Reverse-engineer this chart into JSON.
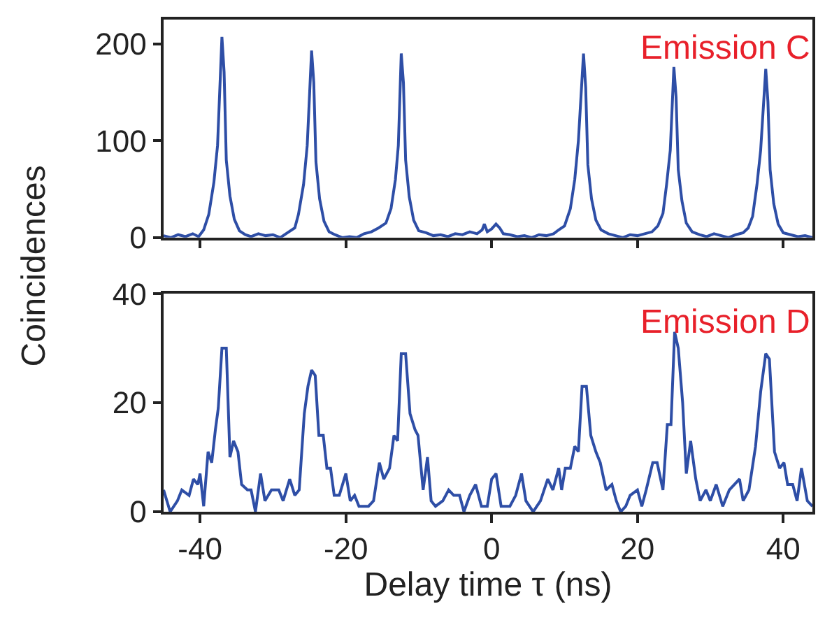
{
  "chart_data": [
    {
      "type": "line",
      "ylabel": "Coincidences",
      "annotations": [
        "Emission C"
      ],
      "xlim": [
        -45,
        44
      ],
      "xticks": [
        -40,
        -20,
        0,
        20,
        40
      ],
      "ylim": [
        0,
        225
      ],
      "yticks": [
        0,
        100,
        200
      ],
      "tick_labels": "y",
      "series": [
        {
          "color": "#2e4ea6",
          "x": [
            -45,
            -44,
            -43,
            -42,
            -41,
            -40.2,
            -39.5,
            -38.8,
            -38.1,
            -37.6,
            -37.0,
            -36.7,
            -36.4,
            -35.9,
            -35.3,
            -34.6,
            -33.8,
            -33,
            -32,
            -31,
            -30,
            -29,
            -28,
            -27,
            -26.5,
            -25.8,
            -25.3,
            -24.7,
            -24.4,
            -24.1,
            -23.6,
            -23,
            -22.3,
            -21.5,
            -20.5,
            -19.5,
            -18.5,
            -17.5,
            -16.5,
            -15.5,
            -14.5,
            -13.8,
            -13.2,
            -12.8,
            -12.4,
            -12.1,
            -11.8,
            -11.3,
            -10.7,
            -10,
            -9,
            -8,
            -7,
            -6,
            -5,
            -4,
            -3,
            -2,
            -1.3,
            -1.0,
            -0.6,
            0,
            0.6,
            1.1,
            1.6,
            2.5,
            3.5,
            4.5,
            5.5,
            6.5,
            7.5,
            8.5,
            9.2,
            10,
            10.8,
            11.4,
            11.9,
            12.6,
            12.9,
            13.2,
            13.7,
            14.3,
            15,
            16,
            17,
            18,
            19,
            20,
            21,
            22,
            22.8,
            23.5,
            24,
            24.5,
            25,
            25.3,
            25.6,
            26.1,
            26.7,
            27.5,
            28.5,
            29.5,
            30.5,
            31.5,
            32.5,
            33.5,
            34.5,
            35.2,
            35.8,
            36.4,
            36.9,
            37.6,
            37.9,
            38.2,
            38.7,
            39.3,
            40,
            41,
            42,
            43,
            44
          ],
          "values": [
            2,
            0,
            3,
            1,
            4,
            1,
            8,
            24,
            57,
            95,
            207,
            171,
            80,
            43,
            19,
            7,
            3,
            1,
            4,
            2,
            3,
            0,
            5,
            10,
            24,
            55,
            95,
            193,
            160,
            78,
            40,
            17,
            6,
            3,
            0,
            1,
            0,
            4,
            6,
            10,
            15,
            30,
            60,
            95,
            190,
            160,
            80,
            42,
            18,
            7,
            5,
            2,
            3,
            1,
            4,
            3,
            6,
            4,
            8,
            14,
            6,
            9,
            14,
            10,
            4,
            3,
            1,
            2,
            0,
            3,
            2,
            4,
            8,
            12,
            30,
            60,
            100,
            190,
            155,
            75,
            40,
            18,
            8,
            4,
            2,
            0,
            3,
            2,
            4,
            6,
            12,
            25,
            55,
            90,
            176,
            145,
            70,
            38,
            15,
            6,
            3,
            1,
            4,
            2,
            0,
            3,
            5,
            10,
            22,
            55,
            90,
            174,
            140,
            70,
            35,
            14,
            5,
            3,
            1,
            2,
            0
          ]
        }
      ]
    },
    {
      "type": "line",
      "xlabel": "Delay time τ (ns)",
      "annotations": [
        "Emission D"
      ],
      "xlim": [
        -45,
        44
      ],
      "xticks": [
        -40,
        -20,
        0,
        20,
        40
      ],
      "ylim": [
        0,
        40
      ],
      "yticks": [
        0,
        20,
        40
      ],
      "series": [
        {
          "color": "#2e4ea6",
          "x": [
            -45.0,
            -44.1,
            -43.1,
            -42.5,
            -41.5,
            -40.9,
            -40.3,
            -40.0,
            -39.5,
            -38.9,
            -38.4,
            -37.9,
            -37.5,
            -37.0,
            -36.4,
            -35.9,
            -35.4,
            -34.8,
            -34.3,
            -33.5,
            -33.0,
            -32.4,
            -31.7,
            -31.1,
            -30.2,
            -29.2,
            -28.6,
            -27.7,
            -27.0,
            -26.4,
            -25.7,
            -25.2,
            -24.7,
            -24.2,
            -23.7,
            -23.1,
            -22.6,
            -22.1,
            -21.6,
            -20.9,
            -20.0,
            -19.4,
            -18.8,
            -18.2,
            -16.9,
            -16.2,
            -15.4,
            -14.8,
            -14.0,
            -13.4,
            -12.9,
            -12.4,
            -11.8,
            -11.2,
            -10.5,
            -10.1,
            -9.4,
            -8.8,
            -8.3,
            -7.7,
            -6.7,
            -5.9,
            -5.2,
            -4.4,
            -3.8,
            -3.0,
            -2.2,
            -1.4,
            -0.6,
            0.0,
            0.6,
            1.3,
            2.5,
            3.3,
            4.1,
            4.7,
            5.7,
            6.7,
            7.7,
            8.4,
            9.2,
            9.6,
            10.1,
            10.8,
            11.4,
            11.9,
            12.4,
            13.0,
            13.6,
            14.3,
            14.9,
            15.7,
            16.5,
            17.1,
            17.7,
            18.4,
            19.0,
            20.0,
            20.6,
            21.2,
            22.1,
            22.7,
            23.5,
            24.1,
            24.6,
            25.1,
            25.6,
            26.2,
            26.7,
            27.3,
            28.0,
            28.6,
            29.4,
            30.0,
            30.8,
            31.7,
            32.6,
            34.0,
            34.5,
            35.3,
            36.2,
            36.9,
            37.6,
            38.1,
            38.8,
            39.5,
            40.1,
            40.6,
            41.3,
            41.9,
            42.5,
            43.3,
            44.0
          ],
          "values": [
            4,
            0,
            2,
            4,
            3,
            6,
            5,
            7,
            1,
            11,
            9,
            15,
            19,
            30,
            30,
            10,
            13,
            11,
            5,
            4,
            4,
            0,
            7,
            2,
            4,
            4,
            2,
            6,
            3,
            4,
            18,
            23,
            26,
            25,
            14,
            14,
            8,
            8,
            3,
            3,
            7,
            2,
            3,
            1,
            1,
            2,
            9,
            6,
            8,
            14,
            13,
            29,
            29,
            18,
            15,
            14,
            4,
            10,
            2,
            1,
            2,
            4,
            3,
            3,
            0,
            3,
            5,
            1,
            1,
            6,
            7,
            1,
            1,
            3,
            7,
            2,
            0,
            2,
            6,
            4,
            8,
            4,
            8,
            8,
            12,
            11,
            23,
            23,
            14,
            11,
            9,
            4,
            5,
            2,
            0,
            1,
            3,
            4,
            1,
            4,
            9,
            9,
            4,
            16,
            16,
            33,
            30,
            20,
            7,
            13,
            6,
            2,
            4,
            2,
            5,
            1,
            4,
            6,
            2,
            4,
            12,
            22,
            29,
            28,
            11,
            8,
            9,
            5,
            5,
            2,
            8,
            2,
            1
          ]
        }
      ]
    }
  ]
}
